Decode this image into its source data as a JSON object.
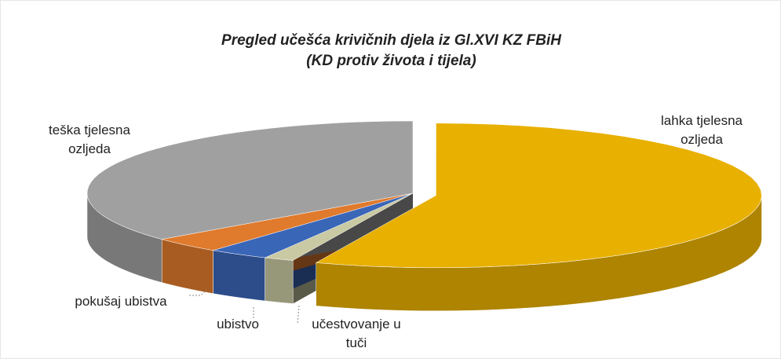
{
  "chart_data": {
    "type": "pie",
    "title": "Pregled učešća krivičnih djela  iz  Gl.XVI KZ FBiH",
    "subtitle": "(KD protiv života i tijela)",
    "categories": [
      "lahka tjelesna ozljeda",
      "učestvovanje u tuči",
      "ubistvo",
      "pokušaj ubistva",
      "teška tjelesna ozljeda"
    ],
    "values": [
      56,
      1.5,
      3,
      3.5,
      36
    ],
    "colors": [
      "#e8b000",
      "#c9c9a3",
      "#3a66b8",
      "#e07a2c",
      "#a0a0a0"
    ]
  }
}
